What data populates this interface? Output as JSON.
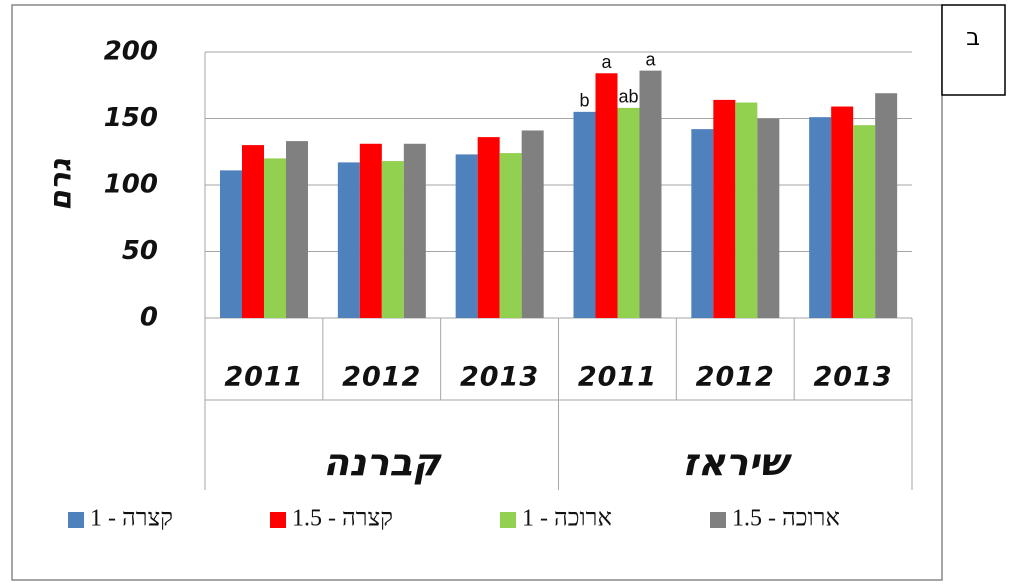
{
  "chart_data": {
    "type": "bar",
    "corner_label": "ב",
    "ylabel": "גרם",
    "categories": [
      "2011",
      "2012",
      "2013",
      "2011",
      "2012",
      "2013"
    ],
    "groups": [
      "קברנה",
      "שיראז"
    ],
    "series": [
      {
        "name": "קצרה - 1",
        "color": "#4f81bd",
        "values": [
          111,
          117,
          123,
          155,
          142,
          151
        ]
      },
      {
        "name": "קצרה - 1.5",
        "color": "#ff0000",
        "values": [
          130,
          131,
          136,
          184,
          164,
          159
        ]
      },
      {
        "name": "ארוכה - 1",
        "color": "#92d050",
        "values": [
          120,
          118,
          124,
          158,
          162,
          145
        ]
      },
      {
        "name": "ארוכה - 1.5",
        "color": "#808080",
        "values": [
          133,
          131,
          141,
          186,
          150,
          169
        ]
      }
    ],
    "annotations": [
      {
        "text": "b",
        "series": 0,
        "category": 3
      },
      {
        "text": "a",
        "series": 1,
        "category": 3
      },
      {
        "text": "ab",
        "series": 2,
        "category": 3
      },
      {
        "text": "a",
        "series": 3,
        "category": 3
      }
    ],
    "ylim": [
      0,
      200
    ],
    "yticks": [
      0,
      50,
      100,
      150,
      200
    ],
    "grid": true
  }
}
